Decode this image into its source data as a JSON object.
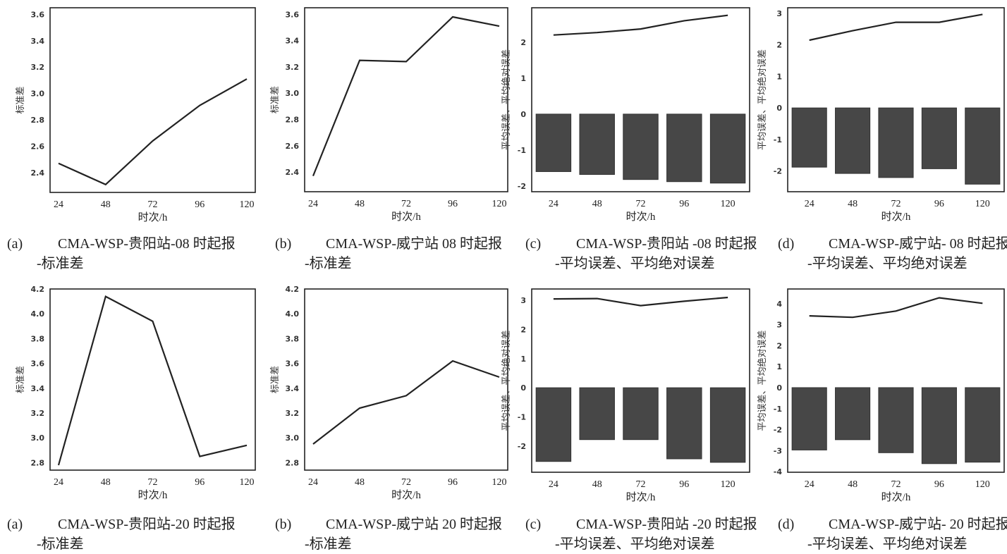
{
  "chart_data": [
    {
      "id": "a08",
      "type": "line",
      "xlabel": "时次/h",
      "ylabel": "标准差",
      "categories": [
        "24",
        "48",
        "72",
        "96",
        "120"
      ],
      "series": [
        {
          "name": "标准差",
          "values": [
            2.47,
            2.31,
            2.64,
            2.91,
            3.11
          ]
        }
      ],
      "yticks": [
        "2.4",
        "2.6",
        "2.8",
        "3.0",
        "3.2",
        "3.4",
        "3.6"
      ],
      "ylim": [
        2.25,
        3.65
      ],
      "caption_tag": "(a)",
      "caption_line1": "CMA-WSP-贵阳站-08 时起报",
      "caption_line2": "-标准差"
    },
    {
      "id": "b08",
      "type": "line",
      "xlabel": "时次/h",
      "ylabel": "标准差",
      "categories": [
        "24",
        "48",
        "72",
        "96",
        "120"
      ],
      "series": [
        {
          "name": "标准差",
          "values": [
            2.37,
            3.25,
            3.24,
            3.58,
            3.51
          ]
        }
      ],
      "yticks": [
        "2.4",
        "2.6",
        "2.8",
        "3.0",
        "3.2",
        "3.4",
        "3.6"
      ],
      "ylim": [
        2.25,
        3.65
      ],
      "caption_tag": "(b)",
      "caption_line1": "CMA-WSP-威宁站 08 时起报",
      "caption_line2": "-标准差"
    },
    {
      "id": "c08",
      "type": "bar+line",
      "xlabel": "时次/h",
      "ylabel": "平均误差、平均绝对误差",
      "categories": [
        "24",
        "48",
        "72",
        "96",
        "120"
      ],
      "series": [
        {
          "name": "平均误差",
          "kind": "bar",
          "values": [
            -1.6,
            -1.68,
            -1.82,
            -1.88,
            -1.92
          ]
        },
        {
          "name": "平均绝对误差",
          "kind": "line",
          "values": [
            2.2,
            2.27,
            2.37,
            2.6,
            2.75
          ]
        }
      ],
      "yticks": [
        "-2",
        "-1",
        "0",
        "1",
        "2"
      ],
      "ylim": [
        -2.16,
        2.96
      ],
      "caption_tag": "(c)",
      "caption_line1": "CMA-WSP-贵阳站 -08 时起报",
      "caption_line2": "-平均误差、平均绝对误差"
    },
    {
      "id": "d08",
      "type": "bar+line",
      "xlabel": "时次/h",
      "ylabel": "平均误差、平均绝对误差",
      "categories": [
        "24",
        "48",
        "72",
        "96",
        "120"
      ],
      "series": [
        {
          "name": "平均误差",
          "kind": "bar",
          "values": [
            -1.88,
            -2.08,
            -2.21,
            -1.93,
            -2.42
          ]
        },
        {
          "name": "平均绝对误差",
          "kind": "line",
          "values": [
            2.15,
            2.45,
            2.72,
            2.72,
            2.97
          ]
        }
      ],
      "yticks": [
        "-2",
        "-1",
        "0",
        "1",
        "2",
        "3"
      ],
      "ylim": [
        -2.66,
        3.18
      ],
      "caption_tag": "(d)",
      "caption_line1": "CMA-WSP-威宁站- 08 时起报",
      "caption_line2": "-平均误差、平均绝对误差"
    },
    {
      "id": "a20",
      "type": "line",
      "xlabel": "时次/h",
      "ylabel": "标准差",
      "categories": [
        "24",
        "48",
        "72",
        "96",
        "120"
      ],
      "series": [
        {
          "name": "标准差",
          "values": [
            2.78,
            4.14,
            3.94,
            2.85,
            2.94
          ]
        }
      ],
      "yticks": [
        "2.8",
        "3.0",
        "3.2",
        "3.4",
        "3.6",
        "3.8",
        "4.0",
        "4.2"
      ],
      "ylim": [
        2.74,
        4.2
      ],
      "caption_tag": "(a)",
      "caption_line1": "CMA-WSP-贵阳站-20 时起报",
      "caption_line2": "-标准差"
    },
    {
      "id": "b20",
      "type": "line",
      "xlabel": "时次/h",
      "ylabel": "标准差",
      "categories": [
        "24",
        "48",
        "72",
        "96",
        "120"
      ],
      "series": [
        {
          "name": "标准差",
          "values": [
            2.95,
            3.24,
            3.34,
            3.62,
            3.49
          ]
        }
      ],
      "yticks": [
        "2.8",
        "3.0",
        "3.2",
        "3.4",
        "3.6",
        "3.8",
        "4.0",
        "4.2"
      ],
      "ylim": [
        2.74,
        4.2
      ],
      "caption_tag": "(b)",
      "caption_line1": "CMA-WSP-威宁站 20 时起报",
      "caption_line2": "-标准差"
    },
    {
      "id": "c20",
      "type": "bar+line",
      "xlabel": "时次/h",
      "ylabel": "平均误差、平均绝对误差",
      "categories": [
        "24",
        "48",
        "72",
        "96",
        "120"
      ],
      "series": [
        {
          "name": "平均误差",
          "kind": "bar",
          "values": [
            -2.53,
            -1.78,
            -1.78,
            -2.44,
            -2.56
          ]
        },
        {
          "name": "平均绝对误差",
          "kind": "line",
          "values": [
            3.05,
            3.06,
            2.82,
            2.97,
            3.1
          ]
        }
      ],
      "yticks": [
        "-2",
        "-1",
        "0",
        "1",
        "2",
        "3"
      ],
      "ylim": [
        -2.9,
        3.39
      ],
      "caption_tag": "(c)",
      "caption_line1": "CMA-WSP-贵阳站 -20 时起报",
      "caption_line2": "-平均误差、平均绝对误差"
    },
    {
      "id": "d20",
      "type": "bar+line",
      "xlabel": "时次/h",
      "ylabel": "平均误差、平均绝对误差",
      "categories": [
        "24",
        "48",
        "72",
        "96",
        "120"
      ],
      "series": [
        {
          "name": "平均误差",
          "kind": "bar",
          "values": [
            -2.97,
            -2.48,
            -3.1,
            -3.62,
            -3.55
          ]
        },
        {
          "name": "平均绝对误差",
          "kind": "line",
          "values": [
            3.42,
            3.35,
            3.65,
            4.28,
            4.02
          ]
        }
      ],
      "yticks": [
        "-4",
        "-3",
        "-2",
        "-1",
        "0",
        "1",
        "2",
        "3",
        "4"
      ],
      "ylim": [
        -4.03,
        4.7
      ],
      "caption_tag": "(d)",
      "caption_line1": "CMA-WSP-威宁站- 20 时起报",
      "caption_line2": "-平均误差、平均绝对误差"
    }
  ],
  "colors": {
    "bar": "#474747",
    "line": "#222222",
    "axis": "#222222"
  }
}
